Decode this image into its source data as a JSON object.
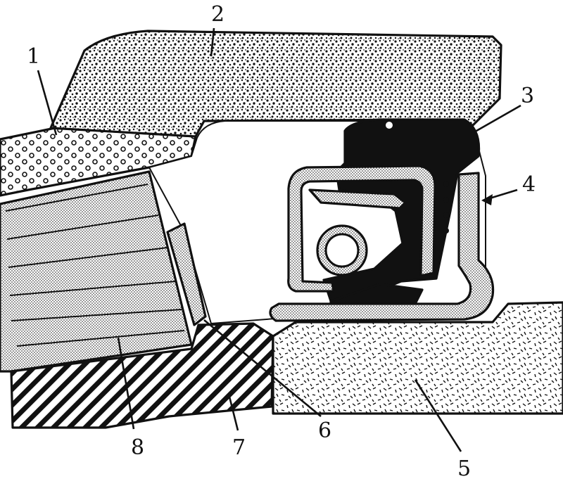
{
  "callouts": [
    {
      "id": "1",
      "label": "1"
    },
    {
      "id": "2",
      "label": "2"
    },
    {
      "id": "3",
      "label": "3"
    },
    {
      "id": "4",
      "label": "4"
    },
    {
      "id": "5",
      "label": "5"
    },
    {
      "id": "6",
      "label": "6"
    },
    {
      "id": "7",
      "label": "7"
    },
    {
      "id": "8",
      "label": "8"
    }
  ],
  "colors": {
    "ink": "#111111",
    "paper": "#ffffff"
  }
}
